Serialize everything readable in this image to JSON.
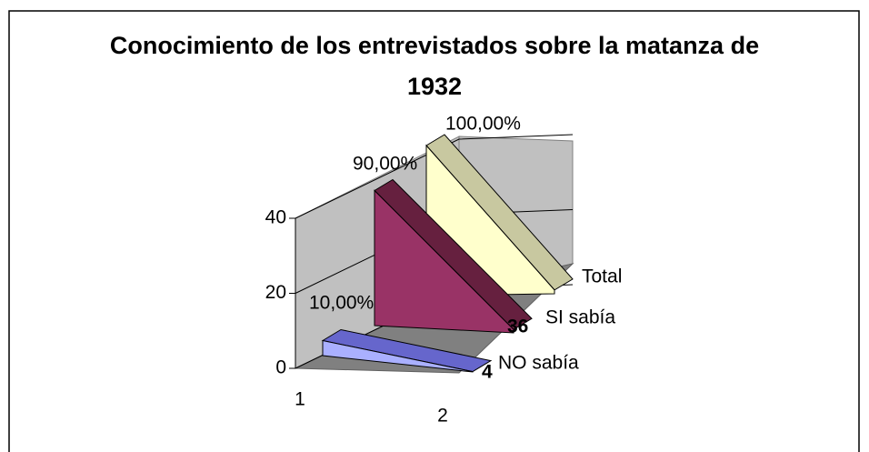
{
  "chart_data": {
    "type": "area3d",
    "title": "Conocimiento de los entrevistados sobre la matanza de 1932",
    "categories": [
      "1",
      "2"
    ],
    "series": [
      {
        "name": "NO sabía",
        "color": "#9999ff",
        "values": [
          4,
          0.1
        ],
        "value_labels": [
          "4",
          "10,00%"
        ]
      },
      {
        "name": "SI sabía",
        "color": "#993366",
        "values": [
          36,
          0.9
        ],
        "value_labels": [
          "36",
          "90,00%"
        ]
      },
      {
        "name": "Total",
        "color": "#ffffcc",
        "values": [
          40,
          1
        ],
        "value_labels": [
          null,
          "100,00%"
        ]
      }
    ],
    "ylim": [
      0,
      40
    ],
    "yticks": [
      0,
      20,
      40
    ],
    "grid": true
  }
}
